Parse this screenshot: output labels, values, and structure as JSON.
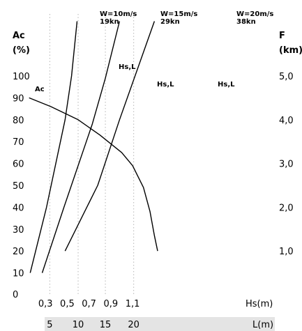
{
  "chart_data": {
    "type": "line",
    "left_axis": {
      "title_line1": "Ac",
      "title_line2": "(%)",
      "ticks": [
        "0",
        "10",
        "20",
        "30",
        "40",
        "50",
        "60",
        "70",
        "80",
        "90",
        "100"
      ],
      "range": [
        0,
        110
      ]
    },
    "right_axis": {
      "title_line1": "F",
      "title_line2": "(km)",
      "ticks": [
        {
          "value": 20,
          "label": "1,0"
        },
        {
          "value": 40,
          "label": "2,0"
        },
        {
          "value": 60,
          "label": "3,0"
        },
        {
          "value": 80,
          "label": "4,0"
        },
        {
          "value": 100,
          "label": "5,0"
        }
      ]
    },
    "x_axis": {
      "label": "Hs(m)",
      "ticks": [
        {
          "value": 0.3,
          "label": "0,3"
        },
        {
          "value": 0.5,
          "label": "0,5"
        },
        {
          "value": 0.7,
          "label": "0,7"
        },
        {
          "value": 0.9,
          "label": "0,9"
        },
        {
          "value": 1.1,
          "label": "1,1"
        }
      ],
      "range": [
        0.1,
        1.4
      ]
    },
    "secondary_x_axis": {
      "label": "L(m)",
      "ticks": [
        {
          "value": 0.34,
          "label": "5"
        },
        {
          "value": 0.6,
          "label": "10"
        },
        {
          "value": 0.85,
          "label": "15"
        },
        {
          "value": 1.11,
          "label": "20"
        }
      ]
    },
    "gridlines_x": [
      0.34,
      0.6,
      0.85,
      1.11
    ],
    "series": [
      {
        "name": "Ac",
        "label": "Ac",
        "points": [
          [
            0.15,
            90
          ],
          [
            0.35,
            86
          ],
          [
            0.6,
            80
          ],
          [
            0.8,
            73
          ],
          [
            1.0,
            65
          ],
          [
            1.1,
            59
          ],
          [
            1.2,
            49
          ],
          [
            1.26,
            38
          ],
          [
            1.3,
            27
          ],
          [
            1.33,
            20
          ]
        ]
      },
      {
        "label": "Hs,L",
        "speed_line1": "W=10m/s",
        "speed_line2": "19kn",
        "points": [
          [
            0.16,
            10
          ],
          [
            0.21,
            20
          ],
          [
            0.31,
            40
          ],
          [
            0.48,
            80
          ],
          [
            0.54,
            100
          ],
          [
            0.59,
            125
          ]
        ]
      },
      {
        "label": "Hs,L",
        "speed_line1": "W=15m/s",
        "speed_line2": "29kn",
        "points": [
          [
            0.27,
            10
          ],
          [
            0.47,
            40
          ],
          [
            0.73,
            78
          ],
          [
            0.85,
            99
          ],
          [
            0.98,
            125
          ]
        ]
      },
      {
        "label": "Hs,L",
        "speed_line1": "W=20m/s",
        "speed_line2": "38kn",
        "points": [
          [
            0.48,
            20
          ],
          [
            0.78,
            50
          ],
          [
            0.98,
            80
          ],
          [
            1.3,
            125
          ]
        ]
      }
    ]
  }
}
